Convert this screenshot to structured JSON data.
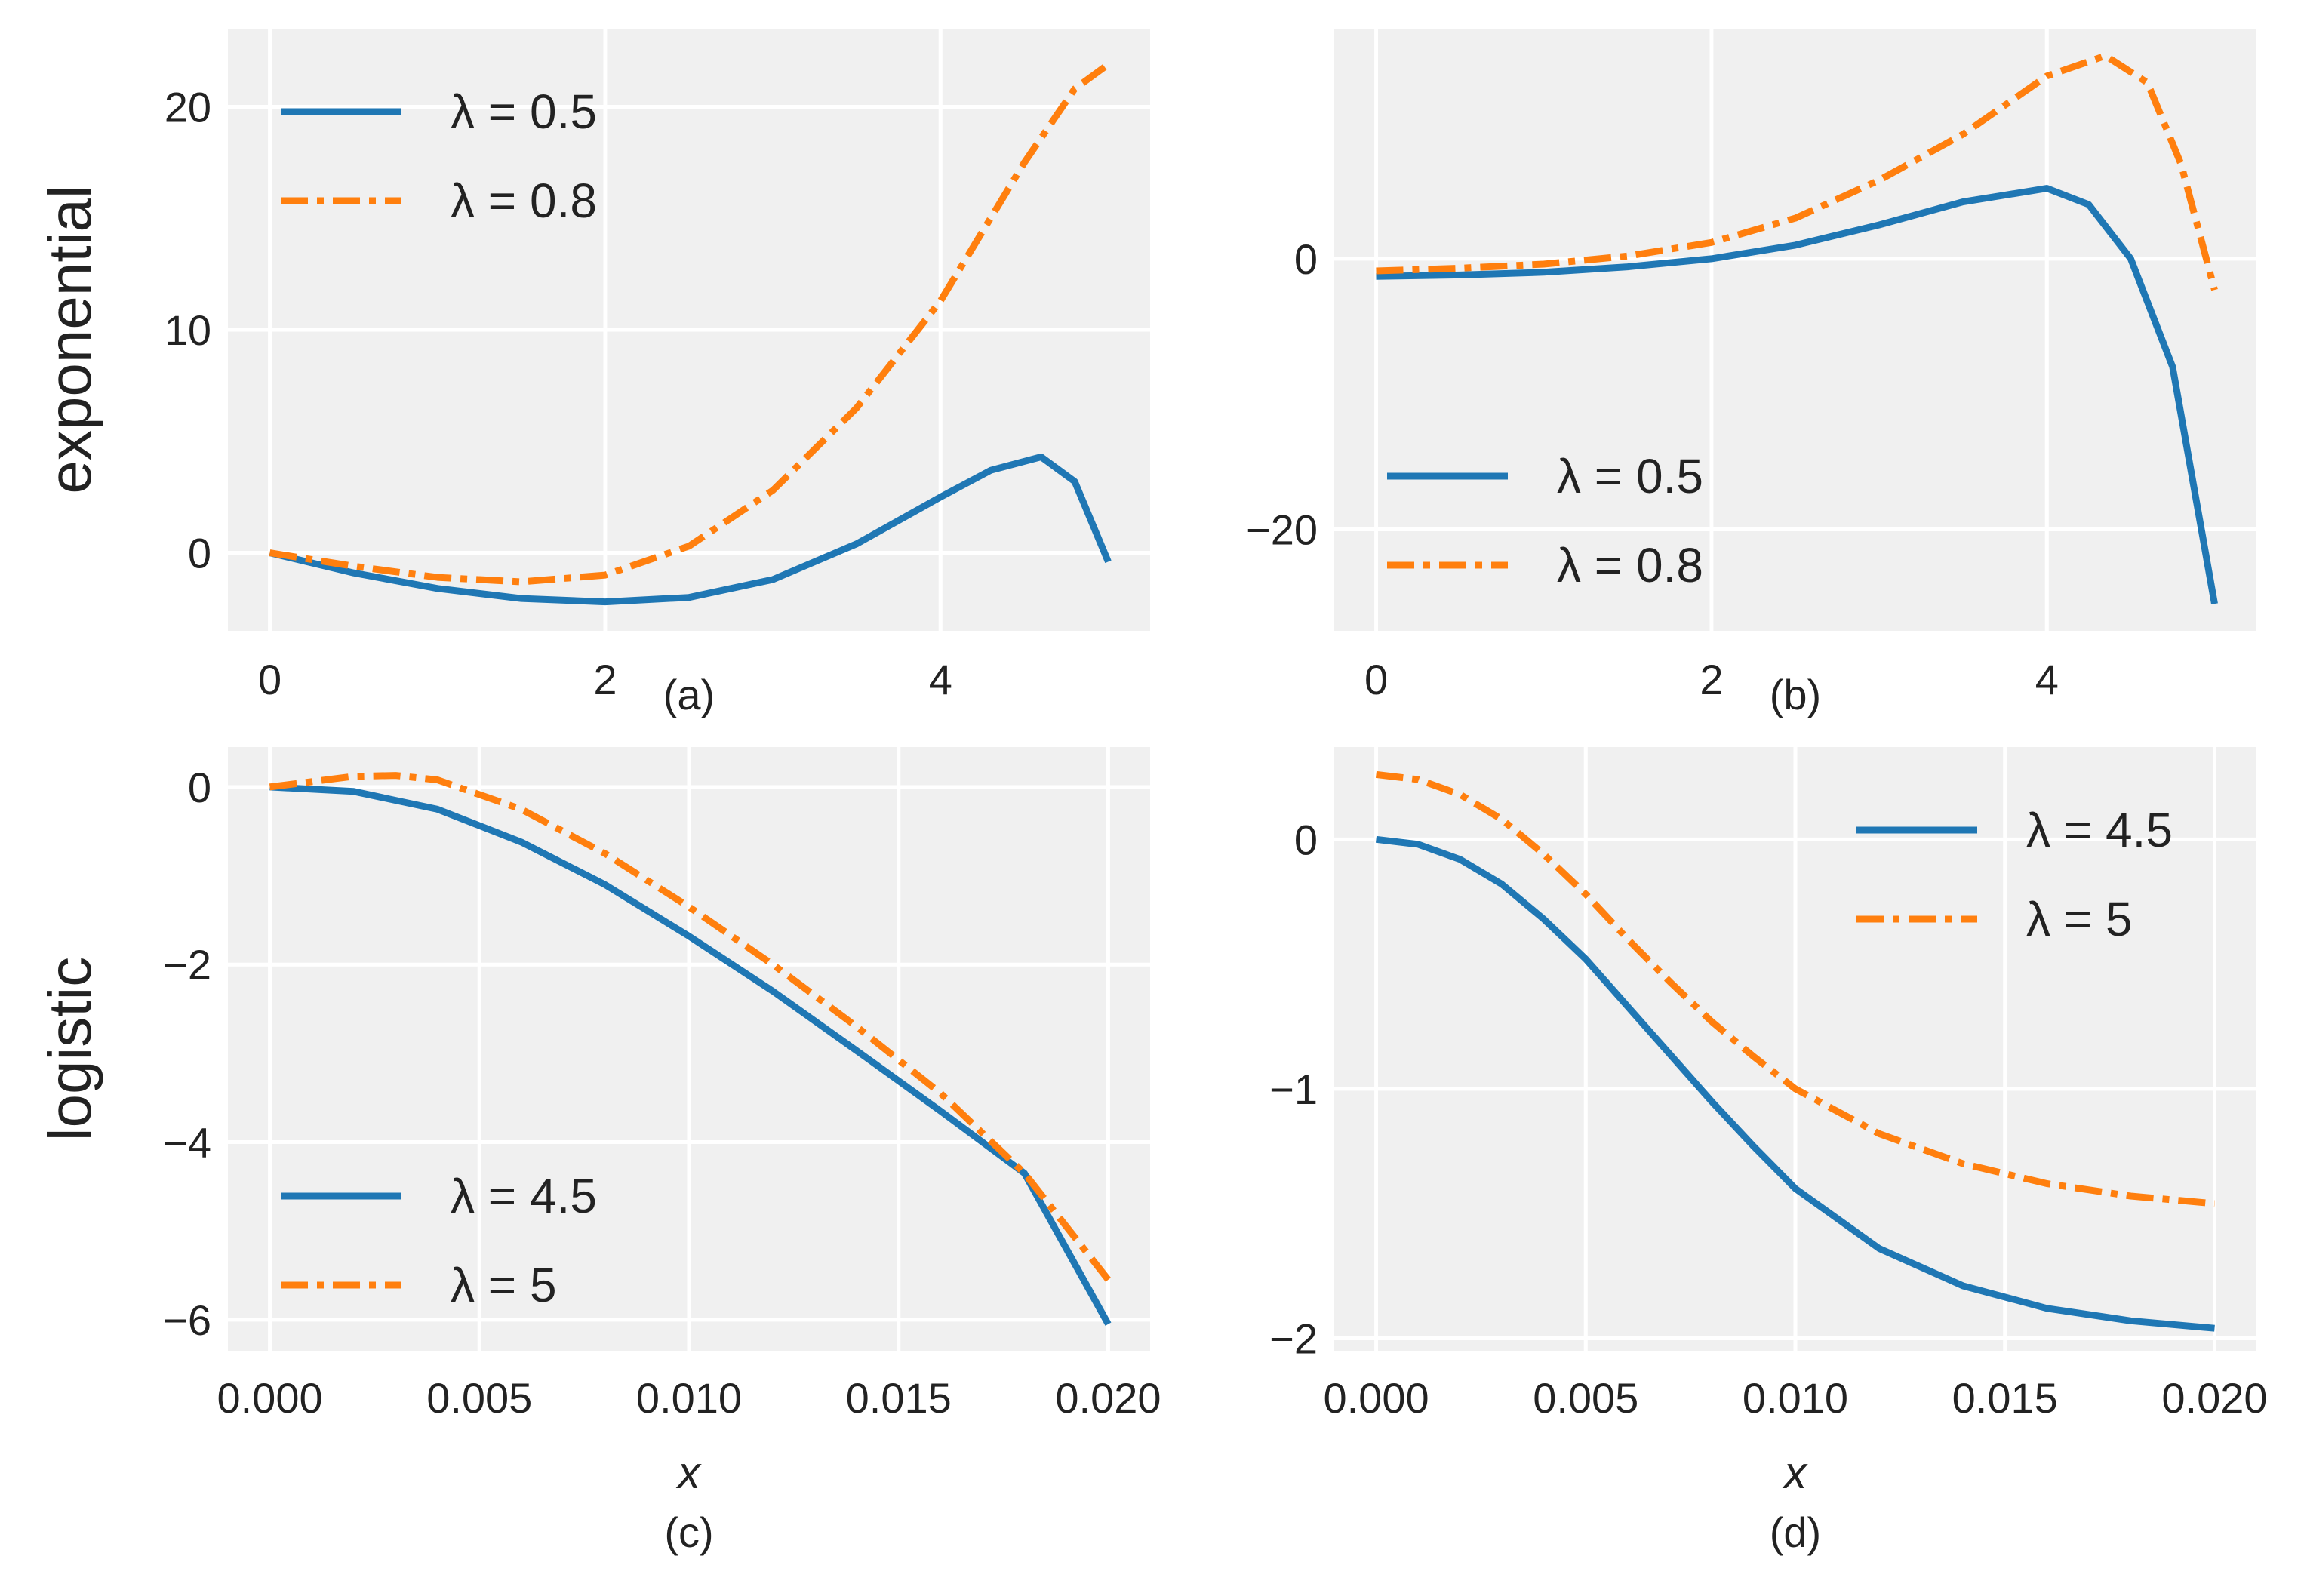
{
  "figure": {
    "row_labels": [
      "exponential",
      "logistic"
    ],
    "colors": {
      "series1": "#1f77b4",
      "series2": "#ff7f0e",
      "panel_bg": "#f0f0f0",
      "grid": "#ffffff"
    }
  },
  "chart_data": [
    {
      "id": "a",
      "type": "line",
      "caption": "(a)",
      "xlabel": "",
      "xlim": [
        -0.25,
        5.25
      ],
      "ylim": [
        -3.5,
        23.5
      ],
      "xticks": [
        0,
        2,
        4
      ],
      "xtick_labels": [
        "0",
        "2",
        "4"
      ],
      "yticks": [
        0,
        10,
        20
      ],
      "ytick_labels": [
        "0",
        "10",
        "20"
      ],
      "legend_position": "top-left",
      "series": [
        {
          "name": "λ = 0.5",
          "style": "solid",
          "x": [
            0,
            0.5,
            1,
            1.5,
            2,
            2.5,
            3,
            3.5,
            4,
            4.3,
            4.6,
            4.8,
            5
          ],
          "y": [
            0,
            -0.9,
            -1.6,
            -2.05,
            -2.2,
            -2.0,
            -1.2,
            0.4,
            2.5,
            3.7,
            4.3,
            3.2,
            -0.4
          ]
        },
        {
          "name": "λ = 0.8",
          "style": "dashdot",
          "x": [
            0,
            0.5,
            1,
            1.5,
            2,
            2.5,
            3,
            3.5,
            4,
            4.5,
            4.8,
            5
          ],
          "y": [
            0,
            -0.6,
            -1.1,
            -1.3,
            -1.0,
            0.3,
            2.8,
            6.5,
            11.3,
            17.5,
            20.8,
            21.9
          ]
        }
      ]
    },
    {
      "id": "b",
      "type": "line",
      "caption": "(b)",
      "xlabel": "",
      "xlim": [
        -0.25,
        5.25
      ],
      "ylim": [
        -27.5,
        17
      ],
      "xticks": [
        0,
        2,
        4
      ],
      "xtick_labels": [
        "0",
        "2",
        "4"
      ],
      "yticks": [
        -20,
        0
      ],
      "ytick_labels": [
        "−20",
        "0"
      ],
      "legend_position": "bottom-left",
      "series": [
        {
          "name": "λ = 0.5",
          "style": "solid",
          "x": [
            0,
            0.5,
            1,
            1.5,
            2,
            2.5,
            3,
            3.5,
            4,
            4.25,
            4.5,
            4.75,
            5
          ],
          "y": [
            -1.3,
            -1.2,
            -1.0,
            -0.6,
            0.0,
            1.0,
            2.5,
            4.2,
            5.2,
            4.0,
            0.0,
            -8.0,
            -25.5
          ]
        },
        {
          "name": "λ = 0.8",
          "style": "dashdot",
          "x": [
            0,
            0.5,
            1,
            1.5,
            2,
            2.5,
            3,
            3.5,
            4,
            4.35,
            4.6,
            4.8,
            5
          ],
          "y": [
            -0.9,
            -0.7,
            -0.4,
            0.2,
            1.2,
            3.0,
            5.8,
            9.2,
            13.5,
            15.0,
            13.0,
            7.0,
            -2.3
          ]
        }
      ]
    },
    {
      "id": "c",
      "type": "line",
      "caption": "(c)",
      "xlabel": "x",
      "xlim": [
        -0.001,
        0.021
      ],
      "ylim": [
        -6.35,
        0.45
      ],
      "xticks": [
        0,
        0.005,
        0.01,
        0.015,
        0.02
      ],
      "xtick_labels": [
        "0.000",
        "0.005",
        "0.010",
        "0.015",
        "0.020"
      ],
      "yticks": [
        -6,
        -4,
        -2,
        0
      ],
      "ytick_labels": [
        "−6",
        "−4",
        "−2",
        "0"
      ],
      "legend_position": "bottom-left",
      "series": [
        {
          "name": "λ = 4.5",
          "style": "solid",
          "x": [
            0,
            0.002,
            0.004,
            0.006,
            0.008,
            0.01,
            0.012,
            0.014,
            0.016,
            0.018,
            0.02
          ],
          "y": [
            0,
            -0.05,
            -0.25,
            -0.62,
            -1.1,
            -1.68,
            -2.3,
            -2.97,
            -3.65,
            -4.35,
            -6.05
          ]
        },
        {
          "name": "λ = 5",
          "style": "dashdot",
          "x": [
            0,
            0.002,
            0.003,
            0.004,
            0.006,
            0.008,
            0.01,
            0.012,
            0.014,
            0.016,
            0.018,
            0.02
          ],
          "y": [
            0,
            0.12,
            0.13,
            0.08,
            -0.25,
            -0.75,
            -1.35,
            -2.0,
            -2.7,
            -3.45,
            -4.35,
            -5.55
          ]
        }
      ]
    },
    {
      "id": "d",
      "type": "line",
      "caption": "(d)",
      "xlabel": "x",
      "xlim": [
        -0.001,
        0.021
      ],
      "ylim": [
        -2.05,
        0.37
      ],
      "xticks": [
        0,
        0.005,
        0.01,
        0.015,
        0.02
      ],
      "xtick_labels": [
        "0.000",
        "0.005",
        "0.010",
        "0.015",
        "0.020"
      ],
      "yticks": [
        -2,
        -1,
        0
      ],
      "ytick_labels": [
        "−2",
        "−1",
        "0"
      ],
      "legend_position": "top-right",
      "series": [
        {
          "name": "λ = 4.5",
          "style": "solid",
          "x": [
            0,
            0.001,
            0.002,
            0.003,
            0.004,
            0.005,
            0.006,
            0.007,
            0.008,
            0.009,
            0.01,
            0.012,
            0.014,
            0.016,
            0.018,
            0.02
          ],
          "y": [
            0,
            -0.02,
            -0.08,
            -0.18,
            -0.32,
            -0.48,
            -0.67,
            -0.86,
            -1.05,
            -1.23,
            -1.4,
            -1.64,
            -1.79,
            -1.88,
            -1.93,
            -1.96
          ]
        },
        {
          "name": "λ = 5",
          "style": "dashdot",
          "x": [
            0,
            0.001,
            0.002,
            0.003,
            0.004,
            0.005,
            0.006,
            0.007,
            0.008,
            0.009,
            0.01,
            0.012,
            0.014,
            0.016,
            0.018,
            0.02
          ],
          "y": [
            0.26,
            0.24,
            0.18,
            0.08,
            -0.06,
            -0.22,
            -0.4,
            -0.57,
            -0.73,
            -0.87,
            -1.0,
            -1.18,
            -1.3,
            -1.38,
            -1.43,
            -1.46
          ]
        }
      ]
    }
  ]
}
